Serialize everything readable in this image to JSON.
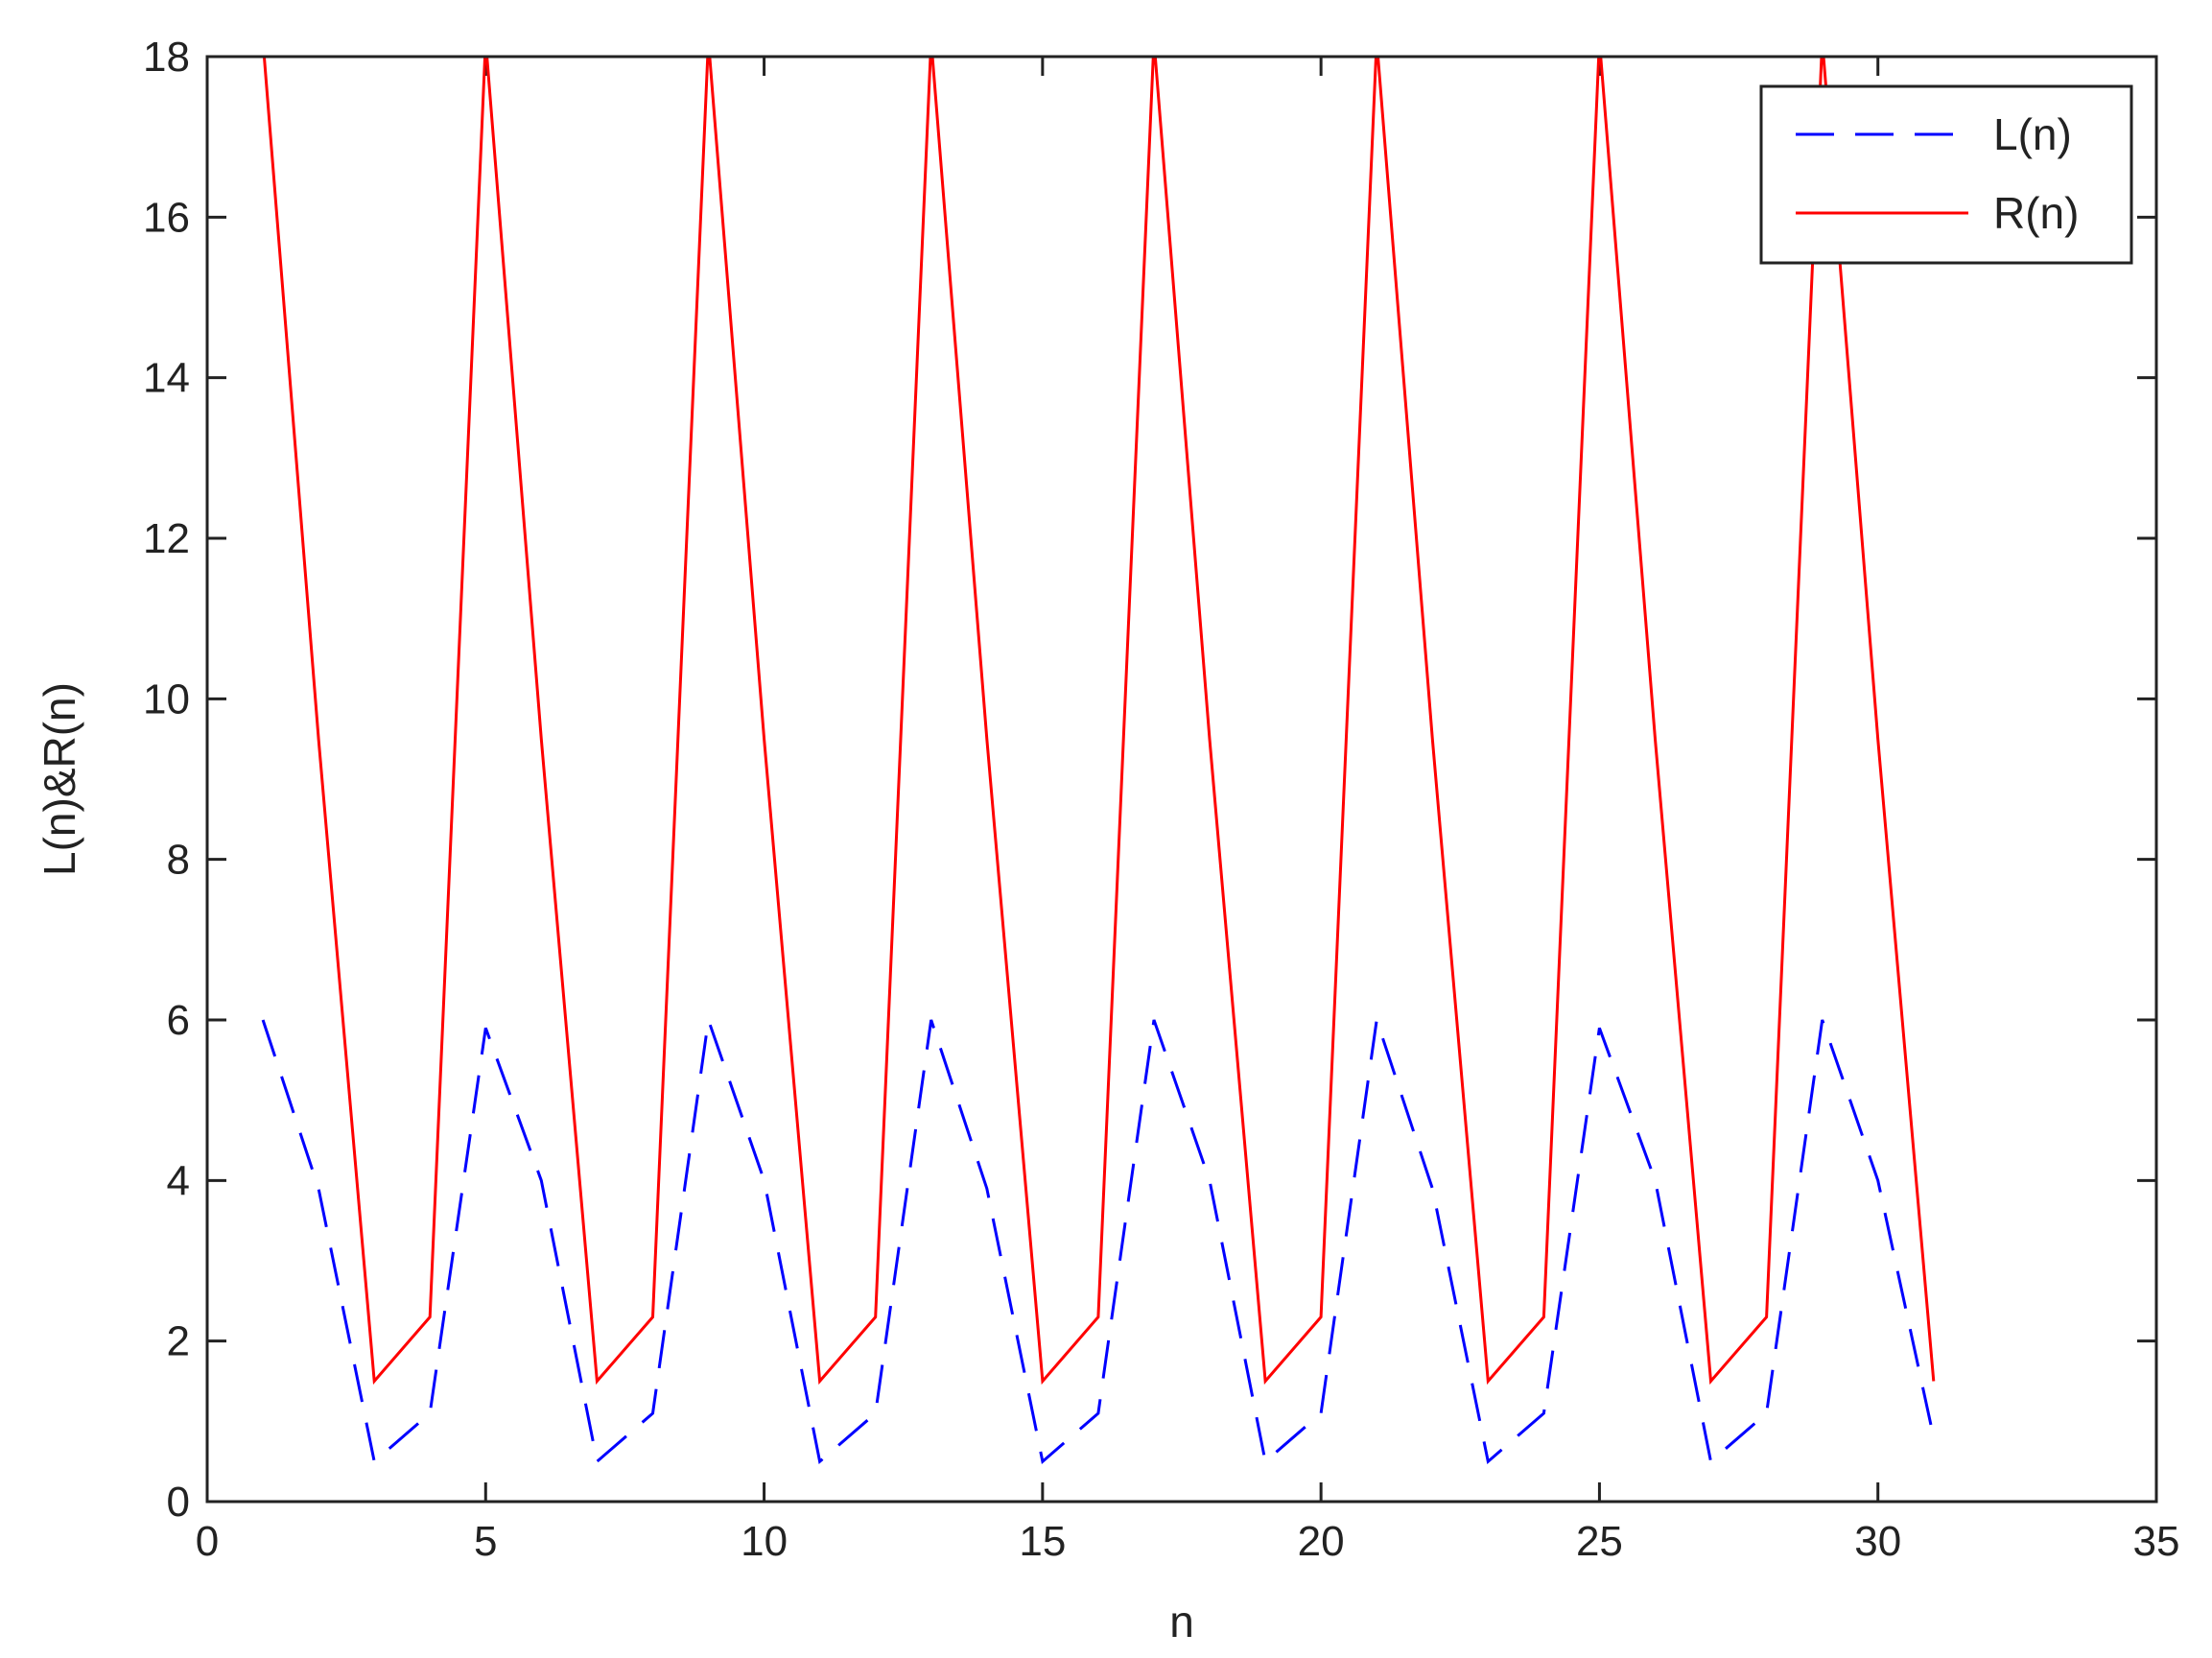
{
  "chart_data": {
    "type": "line",
    "title": "",
    "xlabel": "n",
    "ylabel": "L(n)&R(n)",
    "xlim": [
      0,
      35
    ],
    "ylim": [
      0,
      18
    ],
    "xticks": [
      0,
      5,
      10,
      15,
      20,
      25,
      30,
      35
    ],
    "yticks": [
      0,
      2,
      4,
      6,
      8,
      10,
      12,
      14,
      16,
      18
    ],
    "grid": false,
    "legend": {
      "placement": "top-right"
    },
    "series": [
      {
        "name": "L(n)",
        "color": "#0000ff",
        "style": "dashed",
        "x": [
          1,
          2,
          3,
          4,
          5,
          6,
          7,
          8,
          9,
          10,
          11,
          12,
          13,
          14,
          15,
          16,
          17,
          18,
          19,
          20,
          21,
          22,
          23,
          24,
          25,
          26,
          27,
          28,
          29,
          30,
          31
        ],
        "y": [
          6.0,
          3.9,
          0.5,
          1.1,
          5.9,
          4.0,
          0.5,
          1.1,
          6.0,
          4.0,
          0.5,
          1.1,
          6.0,
          3.9,
          0.5,
          1.1,
          6.0,
          4.0,
          0.5,
          1.1,
          6.0,
          3.9,
          0.5,
          1.1,
          5.9,
          4.0,
          0.5,
          1.1,
          6.0,
          4.0,
          0.8
        ]
      },
      {
        "name": "R(n)",
        "color": "#ff0000",
        "style": "solid",
        "x": [
          1,
          2,
          3,
          4,
          5,
          6,
          7,
          8,
          9,
          10,
          11,
          12,
          13,
          14,
          15,
          16,
          17,
          18,
          19,
          20,
          21,
          22,
          23,
          24,
          25,
          26,
          27,
          28,
          29,
          30,
          31
        ],
        "y": [
          18.2,
          9.5,
          1.5,
          2.3,
          18.2,
          9.5,
          1.5,
          2.3,
          18.2,
          9.5,
          1.5,
          2.3,
          18.2,
          9.5,
          1.5,
          2.3,
          18.2,
          9.5,
          1.5,
          2.3,
          18.2,
          9.5,
          1.5,
          2.3,
          18.2,
          9.5,
          1.5,
          2.3,
          18.2,
          9.5,
          1.5
        ]
      }
    ]
  }
}
